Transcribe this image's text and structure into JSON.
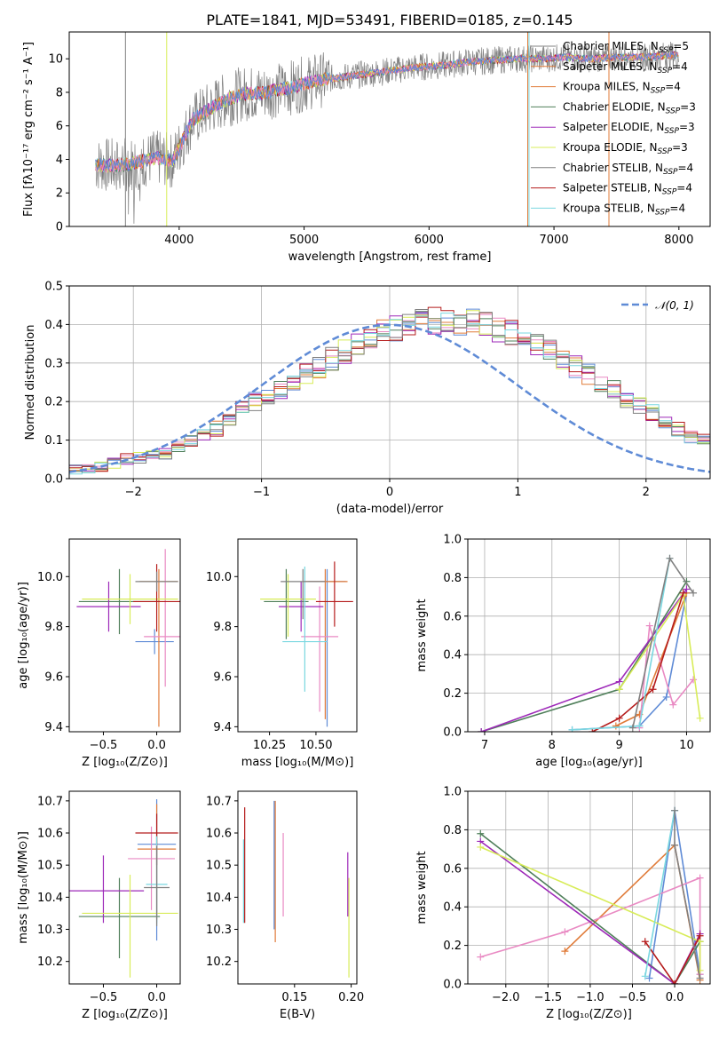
{
  "colors": {
    "Chabrier MILES": "#1f77b4",
    "Salpeter MILES": "#ff7f0e",
    "Kroupa MILES": "#e377c2",
    "Chabrier ELODIE": "#4a7a4a",
    "Salpeter ELODIE": "#9932cc",
    "Kroupa ELODIE": "#d4e157",
    "Chabrier STELIB": "#555555",
    "Salpeter STELIB": "#b22222",
    "Kroupa STELIB": "#6fd0d8",
    "blue": "#5f8bd6",
    "orange": "#e07b39",
    "pink": "#e98ac3",
    "green": "#4f7f5a",
    "purple": "#9d28b8",
    "yellow": "#d8ec58",
    "red": "#b51c1c",
    "cyan": "#7ad7e0",
    "gray": "#808080"
  },
  "chart_data": [
    {
      "type": "line",
      "title": "PLATE=1841, MJD=53491, FIBERID=0185, z=0.145",
      "xlabel": "wavelength [Angstrom, rest frame]",
      "ylabel": "Flux [fλ10⁻¹⁷ erg cm⁻² s⁻¹ A⁻¹]",
      "xlim": [
        3120,
        8250
      ],
      "ylim": [
        0,
        11.6
      ],
      "xticks": [
        4000,
        5000,
        6000,
        7000,
        8000
      ],
      "yticks": [
        0,
        2,
        4,
        6,
        8,
        10
      ],
      "continuum_x": [
        3330,
        3500,
        3650,
        3800,
        3950,
        4100,
        4300,
        4500,
        4700,
        4900,
        5100,
        5300,
        5500,
        5700,
        5900,
        6100,
        6300,
        6500,
        6700,
        6900,
        7100,
        7300,
        7500,
        7700,
        7900,
        8000
      ],
      "continuum_y": [
        3.7,
        3.6,
        3.8,
        4.1,
        3.9,
        6.3,
        7.3,
        7.9,
        8.0,
        8.3,
        8.7,
        8.9,
        9.1,
        9.3,
        9.5,
        9.6,
        9.8,
        9.9,
        10.0,
        10.0,
        10.1,
        10.0,
        10.1,
        10.1,
        10.2,
        10.2
      ],
      "legend": [
        {
          "label": "Chabrier MILES, N",
          "sub": "SSP",
          "tail": "=5",
          "color_key": "gray"
        },
        {
          "label": "Salpeter MILES, N",
          "sub": "SSP",
          "tail": "=4",
          "color_key": "orange"
        },
        {
          "label": "Kroupa MILES, N",
          "sub": "SSP",
          "tail": "=4",
          "color_key": "orange"
        },
        {
          "label": "Chabrier ELODIE, N",
          "sub": "SSP",
          "tail": "=3",
          "color_key": "green"
        },
        {
          "label": "Salpeter ELODIE, N",
          "sub": "SSP",
          "tail": "=3",
          "color_key": "purple"
        },
        {
          "label": "Kroupa ELODIE, N",
          "sub": "SSP",
          "tail": "=3",
          "color_key": "yellow"
        },
        {
          "label": "Chabrier STELIB, N",
          "sub": "SSP",
          "tail": "=4",
          "color_key": "gray"
        },
        {
          "label": "Salpeter STELIB, N",
          "sub": "SSP",
          "tail": "=4",
          "color_key": "red"
        },
        {
          "label": "Kroupa STELIB, N",
          "sub": "SSP",
          "tail": "=4",
          "color_key": "cyan"
        }
      ],
      "legend_placement": "right"
    },
    {
      "type": "bar",
      "xlabel": "(data-model)/error",
      "ylabel": "Normed distribution",
      "xlim": [
        -2.5,
        2.5
      ],
      "ylim": [
        0,
        0.5
      ],
      "xticks": [
        -2,
        -1,
        0,
        1,
        2
      ],
      "yticks": [
        0.0,
        0.1,
        0.2,
        0.3,
        0.4,
        0.5
      ],
      "grid": true,
      "bin_edges_start": -2.5,
      "bin_width": 0.1,
      "hist_values": [
        0.025,
        0.025,
        0.03,
        0.04,
        0.05,
        0.055,
        0.06,
        0.065,
        0.08,
        0.1,
        0.11,
        0.13,
        0.15,
        0.18,
        0.2,
        0.21,
        0.23,
        0.25,
        0.27,
        0.29,
        0.31,
        0.33,
        0.35,
        0.36,
        0.38,
        0.39,
        0.4,
        0.41,
        0.41,
        0.4,
        0.4,
        0.41,
        0.4,
        0.39,
        0.38,
        0.37,
        0.35,
        0.33,
        0.31,
        0.29,
        0.27,
        0.25,
        0.23,
        0.2,
        0.19,
        0.17,
        0.15,
        0.13,
        0.11,
        0.1,
        0.08
      ],
      "series_names": [
        "blue",
        "orange",
        "pink",
        "green",
        "purple",
        "yellow",
        "red",
        "cyan",
        "gray"
      ],
      "normal_label": "𝒩(0, 1)",
      "legend_placement": "top-right"
    },
    {
      "type": "scatter",
      "xlabel": "Z [log₁₀(Z/Z⊙)]",
      "ylabel": "age  [log₁₀(age/yr)]",
      "xlim": [
        -0.82,
        0.22
      ],
      "ylim": [
        9.38,
        10.15
      ],
      "xticks": [
        -0.5,
        0.0
      ],
      "yticks": [
        9.4,
        9.6,
        9.8,
        10.0
      ],
      "points": [
        {
          "x": -0.02,
          "y": 9.74,
          "xerr": 0.18,
          "yerr": [
            0.05,
            0.05
          ],
          "c": "blue"
        },
        {
          "x": 0.02,
          "y": 9.98,
          "xerr": 0.18,
          "yerr": [
            0.58,
            0.05
          ],
          "c": "orange"
        },
        {
          "x": 0.08,
          "y": 9.76,
          "xerr": 0.2,
          "yerr": [
            0.2,
            0.35
          ],
          "c": "pink"
        },
        {
          "x": -0.35,
          "y": 9.9,
          "xerr": 0.38,
          "yerr": [
            0.13,
            0.13
          ],
          "c": "green"
        },
        {
          "x": -0.45,
          "y": 9.88,
          "xerr": 0.3,
          "yerr": [
            0.1,
            0.1
          ],
          "c": "purple"
        },
        {
          "x": -0.25,
          "y": 9.91,
          "xerr": 0.45,
          "yerr": [
            0.1,
            0.1
          ],
          "c": "yellow"
        },
        {
          "x": 0.0,
          "y": 9.9,
          "xerr": 0.22,
          "yerr": [
            0.12,
            0.15
          ],
          "c": "red"
        },
        {
          "x": 0.0,
          "y": 9.98,
          "xerr": 0.2,
          "yerr": [
            0.04,
            0.04
          ],
          "c": "gray"
        }
      ]
    },
    {
      "type": "scatter",
      "xlabel": "mass [log₁₀(M/M⊙)]",
      "ylabel": "",
      "xlim": [
        10.08,
        10.72
      ],
      "ylim": [
        9.38,
        10.15
      ],
      "xticks": [
        10.25,
        10.5
      ],
      "yticks": [
        9.4,
        9.6,
        9.8,
        10.0
      ],
      "points": [
        {
          "x": 10.56,
          "y": 9.98,
          "xerr": 0.1,
          "yerr": [
            0.58,
            0.05
          ],
          "c": "blue"
        },
        {
          "x": 10.55,
          "y": 9.98,
          "xerr": 0.12,
          "yerr": [
            0.55,
            0.05
          ],
          "c": "orange"
        },
        {
          "x": 10.52,
          "y": 9.76,
          "xerr": 0.1,
          "yerr": [
            0.3,
            0.2
          ],
          "c": "pink"
        },
        {
          "x": 10.34,
          "y": 9.9,
          "xerr": 0.12,
          "yerr": [
            0.15,
            0.13
          ],
          "c": "green"
        },
        {
          "x": 10.42,
          "y": 9.88,
          "xerr": 0.12,
          "yerr": [
            0.1,
            0.1
          ],
          "c": "purple"
        },
        {
          "x": 10.35,
          "y": 9.91,
          "xerr": 0.15,
          "yerr": [
            0.15,
            0.1
          ],
          "c": "yellow"
        },
        {
          "x": 10.6,
          "y": 9.9,
          "xerr": 0.1,
          "yerr": [
            0.1,
            0.16
          ],
          "c": "red"
        },
        {
          "x": 10.44,
          "y": 9.74,
          "xerr": 0.12,
          "yerr": [
            0.2,
            0.3
          ],
          "c": "cyan"
        },
        {
          "x": 10.43,
          "y": 9.98,
          "xerr": 0.12,
          "yerr": [
            0.15,
            0.05
          ],
          "c": "gray"
        }
      ]
    },
    {
      "type": "line",
      "xlabel": "age  [log₁₀(age/yr)]",
      "ylabel": "mass weight",
      "xlim": [
        6.75,
        10.35
      ],
      "ylim": [
        0,
        1.0
      ],
      "xticks": [
        7,
        8,
        9,
        10
      ],
      "yticks": [
        0.0,
        0.2,
        0.4,
        0.6,
        0.8,
        1.0
      ],
      "grid": true,
      "series": [
        {
          "c": "blue",
          "x": [
            8.3,
            9.3,
            9.7,
            10.0
          ],
          "y": [
            0.01,
            0.03,
            0.18,
            0.72
          ]
        },
        {
          "c": "orange",
          "x": [
            8.95,
            9.3,
            10.0
          ],
          "y": [
            0.03,
            0.09,
            0.72
          ]
        },
        {
          "c": "pink",
          "x": [
            9.3,
            9.45,
            9.8,
            10.1
          ],
          "y": [
            0.02,
            0.55,
            0.14,
            0.27
          ]
        },
        {
          "c": "green",
          "x": [
            6.95,
            9.0,
            10.0
          ],
          "y": [
            0.0,
            0.22,
            0.78
          ]
        },
        {
          "c": "purple",
          "x": [
            6.95,
            9.0,
            10.0
          ],
          "y": [
            0.0,
            0.26,
            0.74
          ]
        },
        {
          "c": "yellow",
          "x": [
            9.0,
            9.95,
            10.2
          ],
          "y": [
            0.22,
            0.71,
            0.07
          ]
        },
        {
          "c": "red",
          "x": [
            8.6,
            9.0,
            9.5,
            9.95
          ],
          "y": [
            0.0,
            0.07,
            0.22,
            0.72
          ]
        },
        {
          "c": "cyan",
          "x": [
            8.3,
            9.3,
            9.75
          ],
          "y": [
            0.01,
            0.03,
            0.9
          ]
        },
        {
          "c": "gray",
          "x": [
            9.2,
            9.75,
            10.1
          ],
          "y": [
            0.02,
            0.9,
            0.72
          ]
        }
      ]
    },
    {
      "type": "scatter",
      "xlabel": "Z [log₁₀(Z/Z⊙)]",
      "ylabel": "mass [log₁₀(M/M⊙)]",
      "xlim": [
        -0.82,
        0.22
      ],
      "ylim": [
        10.13,
        10.73
      ],
      "xticks": [
        -0.5,
        0.0
      ],
      "yticks": [
        10.2,
        10.3,
        10.4,
        10.5,
        10.6,
        10.7
      ],
      "points": [
        {
          "x": 0.0,
          "y": 10.565,
          "xerr": 0.18,
          "yerr": [
            0.3,
            0.14
          ],
          "c": "blue"
        },
        {
          "x": 0.0,
          "y": 10.55,
          "xerr": 0.18,
          "yerr": [
            0.22,
            0.14
          ],
          "c": "orange"
        },
        {
          "x": -0.05,
          "y": 10.52,
          "xerr": 0.22,
          "yerr": [
            0.16,
            0.1
          ],
          "c": "pink"
        },
        {
          "x": -0.35,
          "y": 10.34,
          "xerr": 0.38,
          "yerr": [
            0.13,
            0.12
          ],
          "c": "green"
        },
        {
          "x": -0.5,
          "y": 10.42,
          "xerr": 0.38,
          "yerr": [
            0.1,
            0.11
          ],
          "c": "purple"
        },
        {
          "x": -0.25,
          "y": 10.35,
          "xerr": 0.45,
          "yerr": [
            0.2,
            0.12
          ],
          "c": "yellow"
        },
        {
          "x": 0.0,
          "y": 10.6,
          "xerr": 0.2,
          "yerr": [
            0.1,
            0.06
          ],
          "c": "red"
        },
        {
          "x": 0.0,
          "y": 10.44,
          "xerr": 0.1,
          "yerr": [
            0.12,
            0.15
          ],
          "c": "cyan"
        },
        {
          "x": 0.0,
          "y": 10.43,
          "xerr": 0.12,
          "yerr": [
            0.12,
            0.13
          ],
          "c": "gray"
        }
      ]
    },
    {
      "type": "scatter",
      "xlabel": "E(B-V)",
      "ylabel": "",
      "xlim": [
        0.1,
        0.205
      ],
      "ylim": [
        10.13,
        10.73
      ],
      "xticks": [
        0.15,
        0.2
      ],
      "yticks": [
        10.2,
        10.3,
        10.4,
        10.5,
        10.6,
        10.7
      ],
      "points": [
        {
          "x": 0.106,
          "y": 10.5,
          "yerr": [
            0.18,
            0.18
          ],
          "c": "red"
        },
        {
          "x": 0.105,
          "y": 10.45,
          "yerr": [
            0.13,
            0.13
          ],
          "c": "cyan"
        },
        {
          "x": 0.133,
          "y": 10.48,
          "yerr": [
            0.22,
            0.22
          ],
          "c": "orange"
        },
        {
          "x": 0.132,
          "y": 10.5,
          "yerr": [
            0.2,
            0.2
          ],
          "c": "blue"
        },
        {
          "x": 0.14,
          "y": 10.47,
          "yerr": [
            0.13,
            0.13
          ],
          "c": "pink"
        },
        {
          "x": 0.197,
          "y": 10.44,
          "yerr": [
            0.1,
            0.1
          ],
          "c": "purple"
        },
        {
          "x": 0.198,
          "y": 10.3,
          "yerr": [
            0.15,
            0.16
          ],
          "c": "yellow"
        }
      ]
    },
    {
      "type": "line",
      "xlabel": "Z [log₁₀(Z/Z⊙)]",
      "ylabel": "mass weight",
      "xlim": [
        -2.45,
        0.42
      ],
      "ylim": [
        0,
        1.0
      ],
      "xticks": [
        -2.0,
        -1.5,
        -1.0,
        -0.5,
        0.0
      ],
      "yticks": [
        0.0,
        0.2,
        0.4,
        0.6,
        0.8,
        1.0
      ],
      "grid": true,
      "series": [
        {
          "c": "blue",
          "x": [
            -0.3,
            0.0,
            0.3
          ],
          "y": [
            0.03,
            0.9,
            0.05
          ]
        },
        {
          "c": "orange",
          "x": [
            -1.3,
            0.0,
            0.3
          ],
          "y": [
            0.17,
            0.72,
            0.02
          ]
        },
        {
          "c": "pink",
          "x": [
            -2.3,
            -1.3,
            0.3,
            0.3
          ],
          "y": [
            0.14,
            0.27,
            0.55,
            0.05
          ]
        },
        {
          "c": "green",
          "x": [
            -2.3,
            0.0,
            0.3
          ],
          "y": [
            0.78,
            0.0,
            0.22
          ]
        },
        {
          "c": "purple",
          "x": [
            -2.3,
            0.0,
            0.3
          ],
          "y": [
            0.74,
            0.0,
            0.26
          ]
        },
        {
          "c": "yellow",
          "x": [
            -2.3,
            0.3,
            0.3
          ],
          "y": [
            0.71,
            0.22,
            0.07
          ]
        },
        {
          "c": "red",
          "x": [
            -0.35,
            0.0,
            0.3
          ],
          "y": [
            0.22,
            0.0,
            0.25
          ]
        },
        {
          "c": "cyan",
          "x": [
            -0.35,
            0.0
          ],
          "y": [
            0.04,
            0.9
          ]
        },
        {
          "c": "gray",
          "x": [
            0.0,
            0.0,
            0.3
          ],
          "y": [
            0.9,
            0.72,
            0.03
          ]
        }
      ]
    }
  ]
}
